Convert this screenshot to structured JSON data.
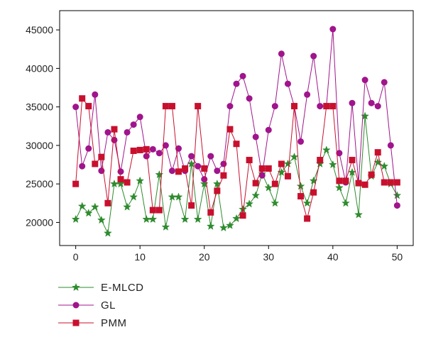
{
  "chart_data": {
    "type": "line",
    "xlim": [
      -2.5,
      52.5
    ],
    "ylim": [
      17000,
      47500
    ],
    "x_ticks": [
      "0",
      "10",
      "20",
      "30",
      "40",
      "50"
    ],
    "y_ticks": [
      "20000",
      "25000",
      "30000",
      "35000",
      "40000",
      "45000"
    ],
    "x_tick_values": [
      0,
      10,
      20,
      30,
      40,
      50
    ],
    "y_tick_values": [
      20000,
      25000,
      30000,
      35000,
      40000,
      45000
    ],
    "grid": false,
    "legend_position": "bottom-left",
    "series": [
      {
        "name": "E-MLCD",
        "color": "#2e8b2e",
        "marker": "star",
        "values": [
          20400,
          22100,
          21200,
          22000,
          20300,
          18600,
          25000,
          25000,
          22000,
          23300,
          25400,
          20400,
          20400,
          26200,
          19400,
          23300,
          23300,
          20400,
          27600,
          20400,
          25000,
          19500,
          25000,
          19300,
          19600,
          20500,
          21700,
          22400,
          23500,
          26300,
          24500,
          22500,
          26500,
          27600,
          28500,
          24700,
          22500,
          25400,
          27600,
          29400,
          27500,
          24500,
          22500,
          26500,
          21000,
          33800,
          26000,
          27800,
          27300,
          25000,
          23500
        ]
      },
      {
        "name": "GL",
        "color": "#a0148c",
        "marker": "circle",
        "values": [
          35000,
          27300,
          29600,
          36600,
          26700,
          31700,
          30700,
          26600,
          31700,
          32700,
          33700,
          28600,
          29500,
          29000,
          30000,
          26700,
          29600,
          26700,
          28600,
          27300,
          25600,
          28600,
          26700,
          27600,
          35100,
          38000,
          39000,
          36100,
          31100,
          26100,
          32000,
          35100,
          41900,
          38000,
          35100,
          30500,
          36600,
          41600,
          35100,
          35100,
          45100,
          29000,
          25200,
          35500,
          25100,
          38500,
          35500,
          35100,
          38200,
          30000,
          22200
        ]
      },
      {
        "name": "PMM",
        "color": "#c8102e",
        "marker": "square",
        "values": [
          25000,
          36100,
          35100,
          27600,
          28500,
          22500,
          32100,
          25600,
          25200,
          29300,
          29400,
          29500,
          21600,
          21600,
          35100,
          35100,
          26600,
          27000,
          22200,
          35100,
          27000,
          21300,
          24100,
          26100,
          32100,
          30200,
          20900,
          28100,
          25100,
          27000,
          27000,
          25000,
          27600,
          26000,
          35100,
          23400,
          20500,
          23900,
          28100,
          35100,
          35100,
          25400,
          25400,
          28100,
          25100,
          24900,
          26200,
          29100,
          25200,
          25200,
          25200
        ]
      }
    ]
  }
}
